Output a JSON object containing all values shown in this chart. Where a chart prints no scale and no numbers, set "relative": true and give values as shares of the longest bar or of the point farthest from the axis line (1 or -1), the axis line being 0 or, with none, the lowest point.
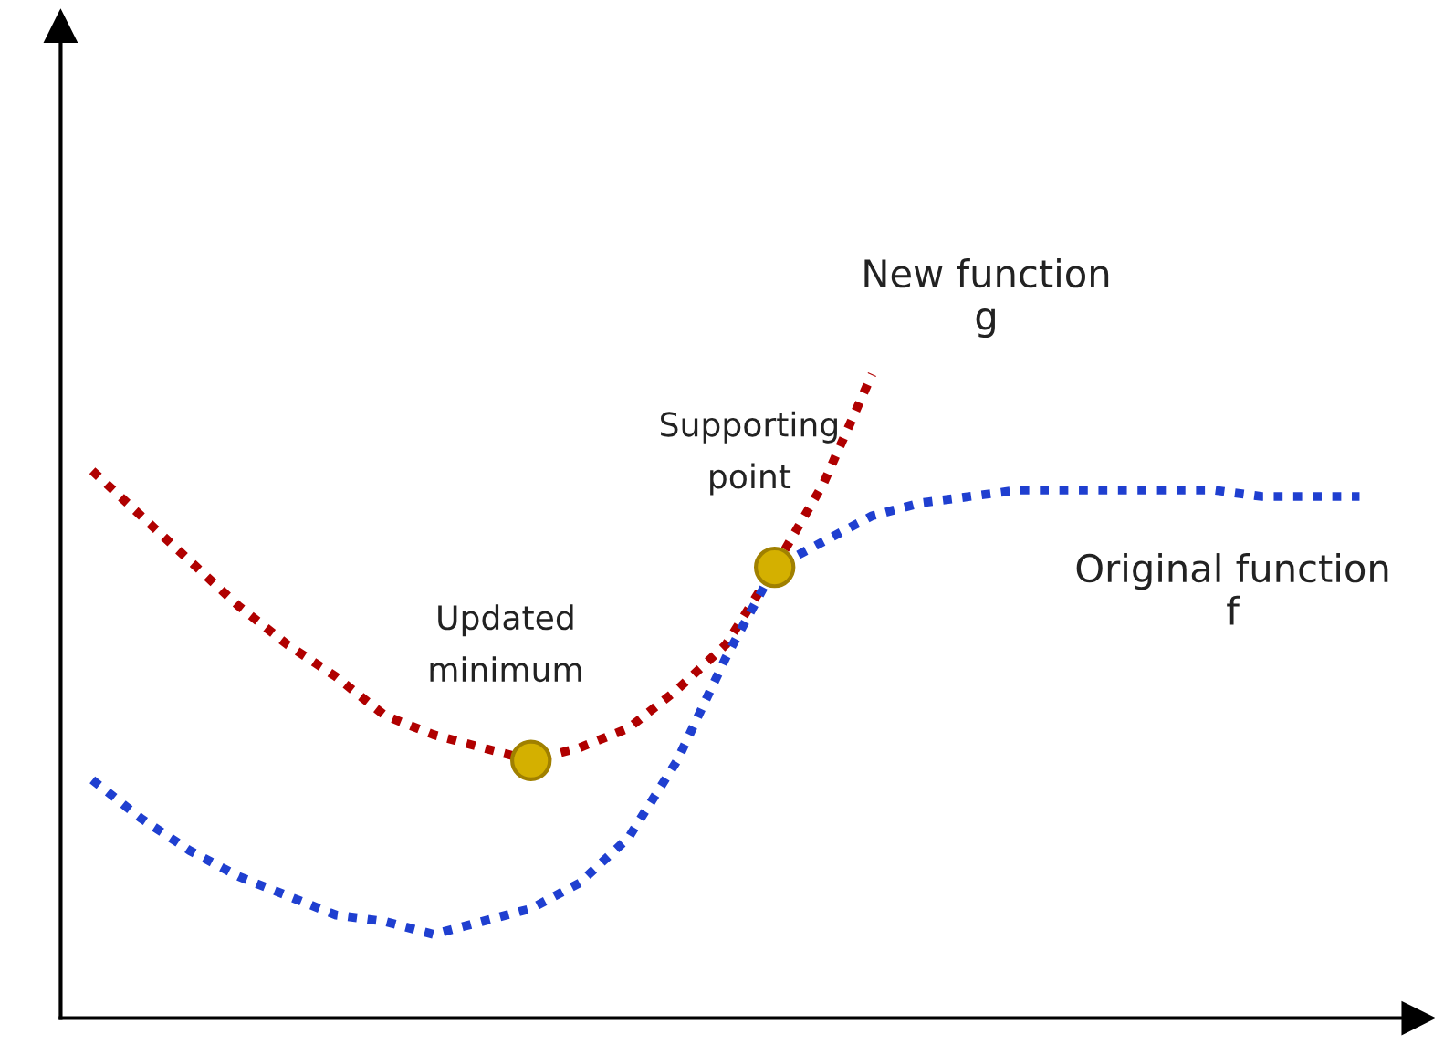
{
  "chart_data": {
    "type": "line",
    "relative": true,
    "categories": [
      null,
      null,
      null,
      null,
      null,
      null,
      null,
      null,
      null,
      null,
      null,
      null,
      null,
      null,
      null,
      null,
      null,
      null,
      null,
      null,
      null,
      null,
      null,
      null,
      null,
      null,
      null
    ],
    "series": [
      {
        "name": "New function g",
        "color": "#b00000",
        "values": [
          0.85,
          0.78,
          0.71,
          0.64,
          0.58,
          0.53,
          0.47,
          0.44,
          0.42,
          0.4,
          0.42,
          0.45,
          0.51,
          0.58,
          0.7,
          0.83,
          1,
          null,
          null,
          null,
          null,
          null,
          null,
          null,
          null,
          null,
          null
        ]
      },
      {
        "name": "Original function f",
        "color": "#1f3fd0",
        "values": [
          0.37,
          0.31,
          0.26,
          0.22,
          0.19,
          0.16,
          0.15,
          0.13,
          0.15,
          0.17,
          0.21,
          0.28,
          0.4,
          0.56,
          0.7,
          0.74,
          0.78,
          0.8,
          0.81,
          0.82,
          0.82,
          0.82,
          0.82,
          0.82,
          0.81,
          0.81,
          0.81
        ]
      }
    ],
    "annotations": [
      "Updated minimum",
      "Supporting point"
    ],
    "line_style": "dotted",
    "marker": "none",
    "legend": false
  }
}
